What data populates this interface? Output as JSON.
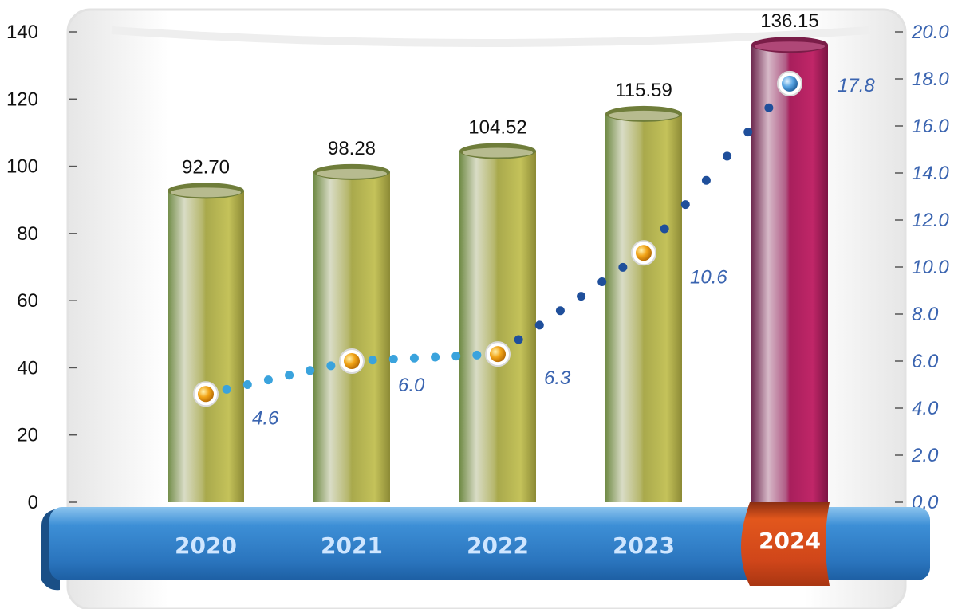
{
  "chart_data": {
    "type": "bar",
    "categories": [
      "2020",
      "2021",
      "2022",
      "2023",
      "2024"
    ],
    "series": [
      {
        "axis": "left",
        "type": "bar",
        "values": [
          92.7,
          98.28,
          104.52,
          115.59,
          136.15
        ],
        "labels": [
          "92.70",
          "98.28",
          "104.52",
          "115.59",
          "136.15"
        ]
      },
      {
        "axis": "right",
        "type": "line",
        "values": [
          4.6,
          6.0,
          6.3,
          10.6,
          17.8
        ],
        "labels": [
          "4.6",
          "6.0",
          "6.3",
          "10.6",
          "17.8"
        ]
      }
    ],
    "y_left": {
      "min": 0,
      "max": 140,
      "ticks": [
        "0",
        "20",
        "40",
        "60",
        "80",
        "100",
        "120",
        "140"
      ]
    },
    "y_right": {
      "min": 0,
      "max": 20,
      "ticks": [
        "0.0",
        "2.0",
        "4.0",
        "6.0",
        "8.0",
        "10.0",
        "12.0",
        "14.0",
        "16.0",
        "18.0",
        "20.0"
      ]
    },
    "highlight_category": "2024",
    "grid": false,
    "legend": "none",
    "colors": {
      "bar": "#b8b656",
      "bar_highlight": "#b3205f",
      "ribbon": "#2f80c8",
      "ribbon_highlight": "#e2571c",
      "line_dots": "#1f4f9b",
      "marker": "#f2a417",
      "marker_highlight": "#3d8fd6"
    },
    "title": "",
    "xlabel": "",
    "ylabel": ""
  }
}
